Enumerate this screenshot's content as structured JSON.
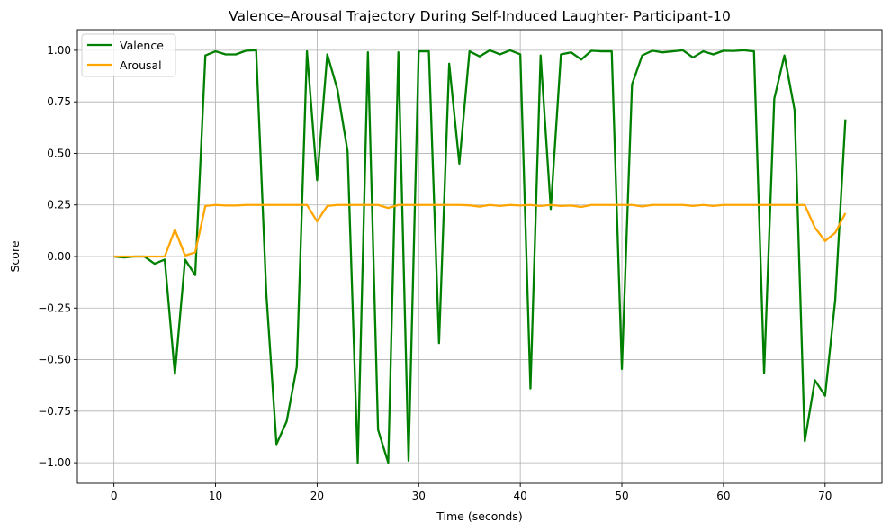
{
  "chart_data": {
    "type": "line",
    "title": "Valence–Arousal Trajectory During Self-Induced Laughter- Participant-10",
    "xlabel": "Time (seconds)",
    "ylabel": "Score",
    "xlim": [
      -3.6,
      75.6
    ],
    "ylim": [
      -1.1,
      1.1
    ],
    "x_ticks": [
      0,
      10,
      20,
      30,
      40,
      50,
      60,
      70
    ],
    "y_ticks": [
      -1.0,
      -0.75,
      -0.5,
      -0.25,
      0.0,
      0.25,
      0.5,
      0.75,
      1.0
    ],
    "x_tick_labels": [
      "0",
      "10",
      "20",
      "30",
      "40",
      "50",
      "60",
      "70"
    ],
    "y_tick_labels": [
      "−1.00",
      "−0.75",
      "−0.50",
      "−0.25",
      "0.00",
      "0.25",
      "0.50",
      "0.75",
      "1.00"
    ],
    "grid": true,
    "legend_position": "upper-left",
    "x": [
      0,
      1,
      2,
      3,
      4,
      5,
      6,
      7,
      8,
      9,
      10,
      11,
      12,
      13,
      14,
      15,
      16,
      17,
      18,
      19,
      20,
      21,
      22,
      23,
      24,
      25,
      26,
      27,
      28,
      29,
      30,
      31,
      32,
      33,
      34,
      35,
      36,
      37,
      38,
      39,
      40,
      41,
      42,
      43,
      44,
      45,
      46,
      47,
      48,
      49,
      50,
      51,
      52,
      53,
      54,
      55,
      56,
      57,
      58,
      59,
      60,
      61,
      62,
      63,
      64,
      65,
      66,
      67,
      68,
      69,
      70,
      71,
      72
    ],
    "series": [
      {
        "name": "Valence",
        "color": "#008000",
        "values": [
          0.0,
          -0.005,
          0.0,
          0.0,
          -0.035,
          -0.015,
          -0.57,
          -0.015,
          -0.09,
          0.975,
          0.995,
          0.98,
          0.98,
          0.998,
          1.0,
          -0.18,
          -0.91,
          -0.8,
          -0.535,
          0.995,
          0.37,
          0.98,
          0.81,
          0.51,
          -1.0,
          0.99,
          -0.84,
          -1.0,
          0.99,
          -0.99,
          0.995,
          0.995,
          -0.42,
          0.935,
          0.45,
          0.995,
          0.97,
          1.0,
          0.98,
          1.0,
          0.98,
          -0.64,
          0.975,
          0.23,
          0.98,
          0.99,
          0.955,
          0.998,
          0.995,
          0.995,
          -0.545,
          0.835,
          0.975,
          0.998,
          0.99,
          0.995,
          1.0,
          0.965,
          0.995,
          0.98,
          0.998,
          0.997,
          1.0,
          0.995,
          -0.565,
          0.765,
          0.975,
          0.71,
          -0.895,
          -0.6,
          -0.675,
          -0.21,
          0.665
        ]
      },
      {
        "name": "Arousal",
        "color": "#FFA500",
        "values": [
          0.0,
          0.0,
          0.0,
          0.0,
          0.0,
          0.0,
          0.13,
          0.005,
          0.02,
          0.245,
          0.25,
          0.247,
          0.247,
          0.25,
          0.25,
          0.25,
          0.25,
          0.25,
          0.25,
          0.25,
          0.17,
          0.245,
          0.25,
          0.25,
          0.25,
          0.25,
          0.25,
          0.235,
          0.25,
          0.25,
          0.25,
          0.25,
          0.25,
          0.25,
          0.25,
          0.248,
          0.242,
          0.25,
          0.245,
          0.25,
          0.247,
          0.25,
          0.245,
          0.25,
          0.245,
          0.247,
          0.24,
          0.25,
          0.25,
          0.25,
          0.25,
          0.25,
          0.243,
          0.25,
          0.25,
          0.25,
          0.25,
          0.245,
          0.25,
          0.245,
          0.25,
          0.25,
          0.25,
          0.25,
          0.25,
          0.25,
          0.25,
          0.25,
          0.25,
          0.14,
          0.075,
          0.115,
          0.21
        ]
      }
    ]
  }
}
